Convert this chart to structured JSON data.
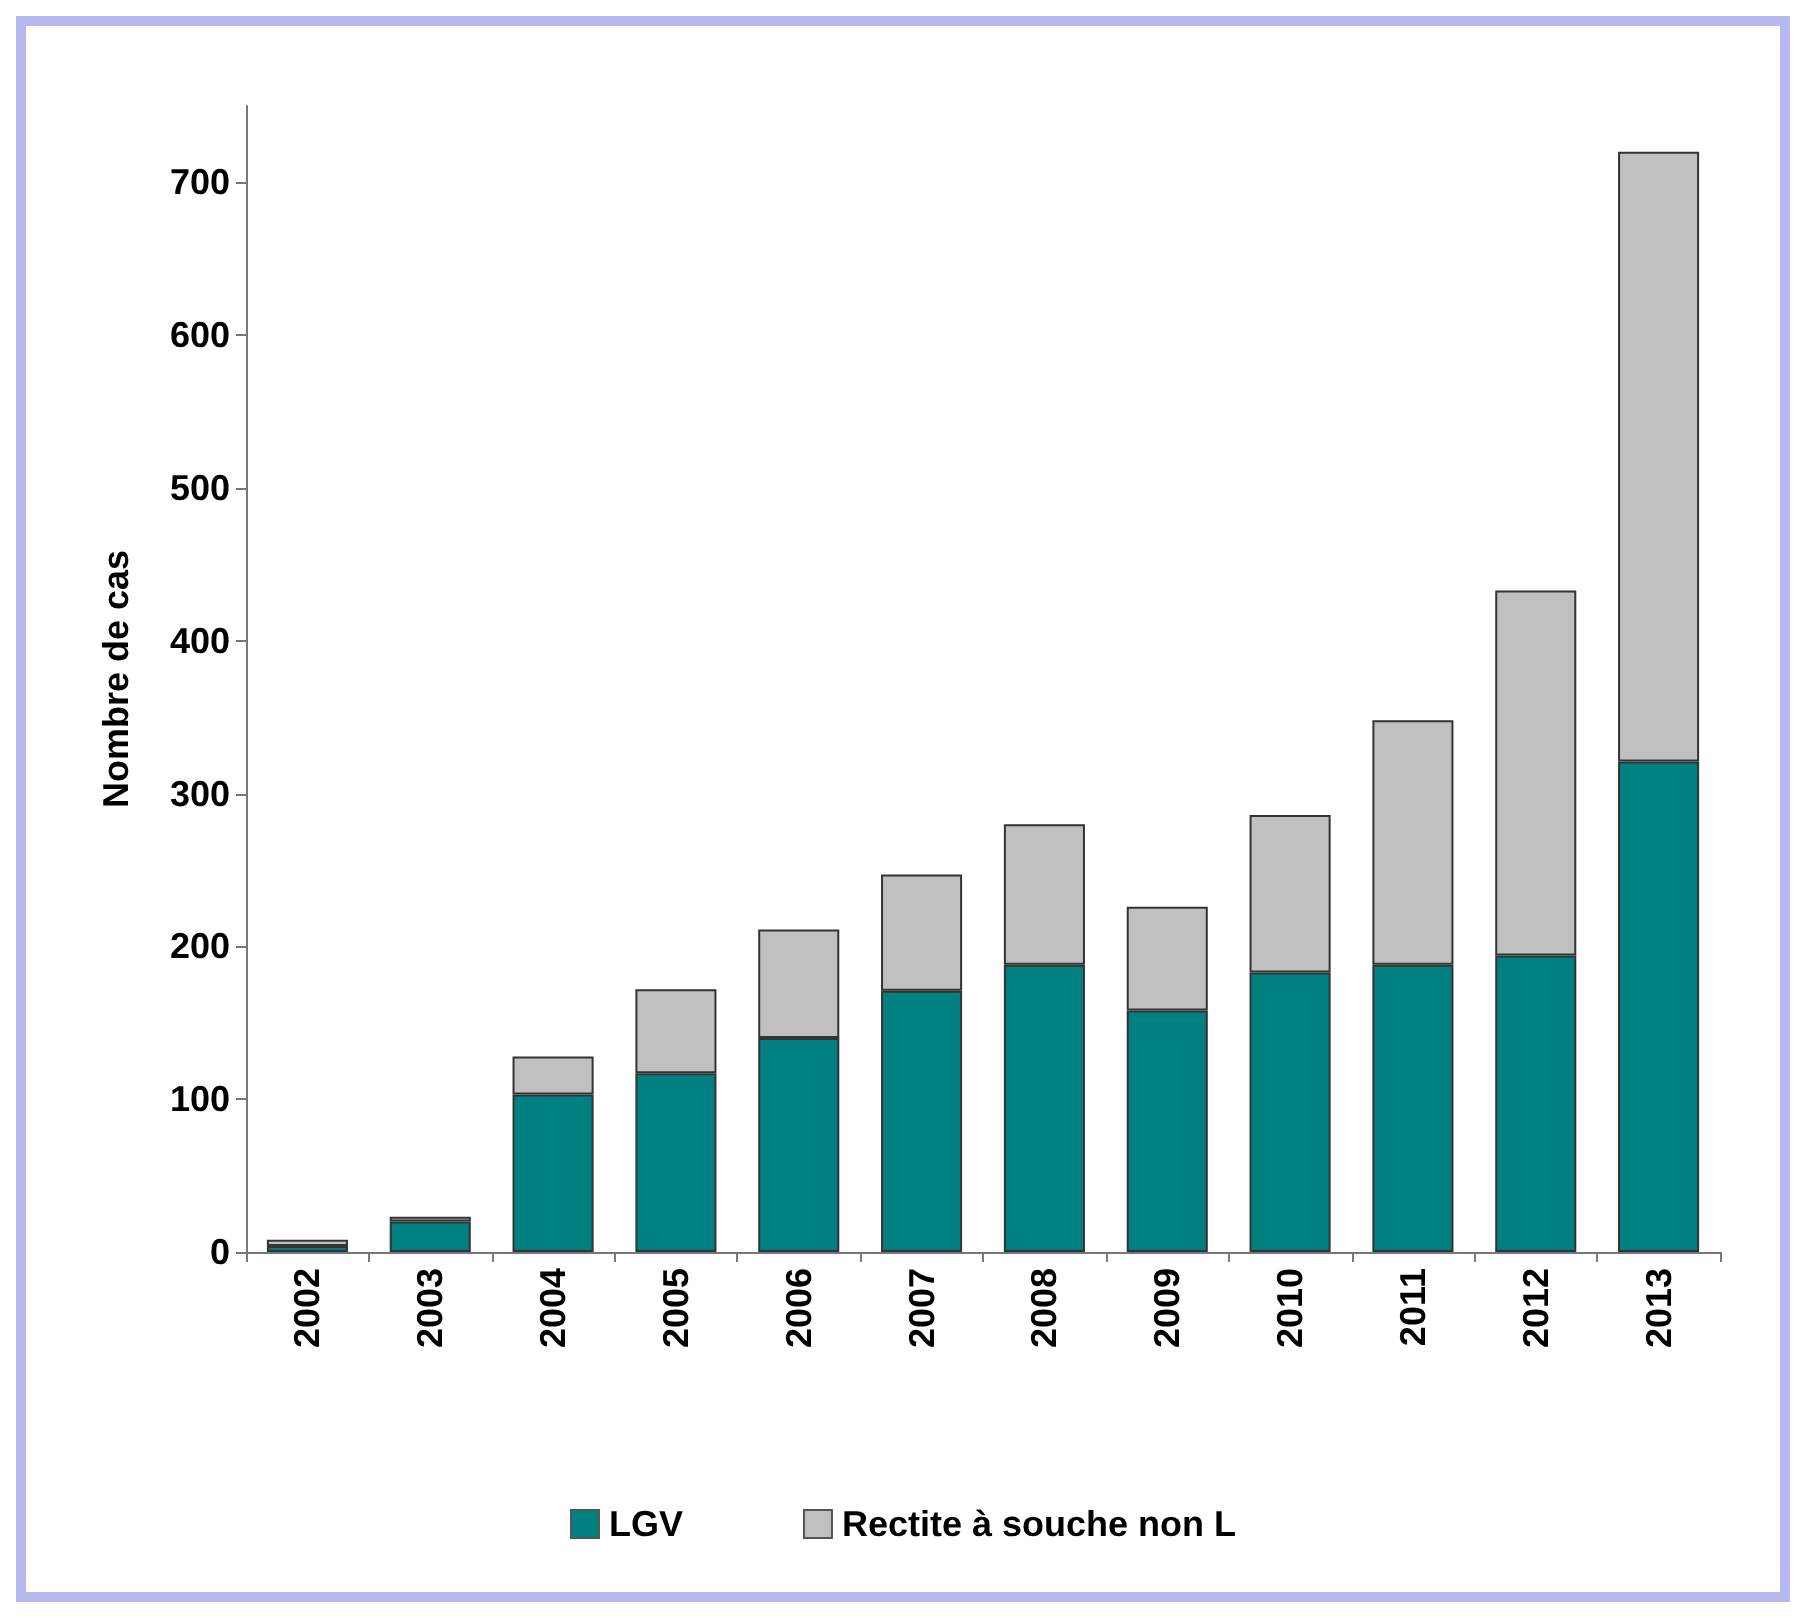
{
  "chart_data": {
    "type": "bar",
    "ylabel": "Nombre de cas",
    "stacked": true,
    "categories": [
      "2002",
      "2003",
      "2004",
      "2005",
      "2006",
      "2007",
      "2008",
      "2009",
      "2010",
      "2011",
      "2012",
      "2013"
    ],
    "series": [
      {
        "name": "LGV",
        "color": "#008080",
        "values": [
          4,
          20,
          103,
          117,
          140,
          171,
          188,
          158,
          183,
          188,
          194,
          321
        ]
      },
      {
        "name": "Rectite à souche non L",
        "color": "#c0c0c0",
        "values": [
          4,
          3,
          25,
          55,
          71,
          76,
          92,
          68,
          103,
          160,
          239,
          399
        ]
      }
    ],
    "ylim": [
      0,
      750
    ],
    "yticks": [
      0,
      100,
      200,
      300,
      400,
      500,
      600,
      700
    ],
    "grid": false,
    "legend": "bottom"
  }
}
